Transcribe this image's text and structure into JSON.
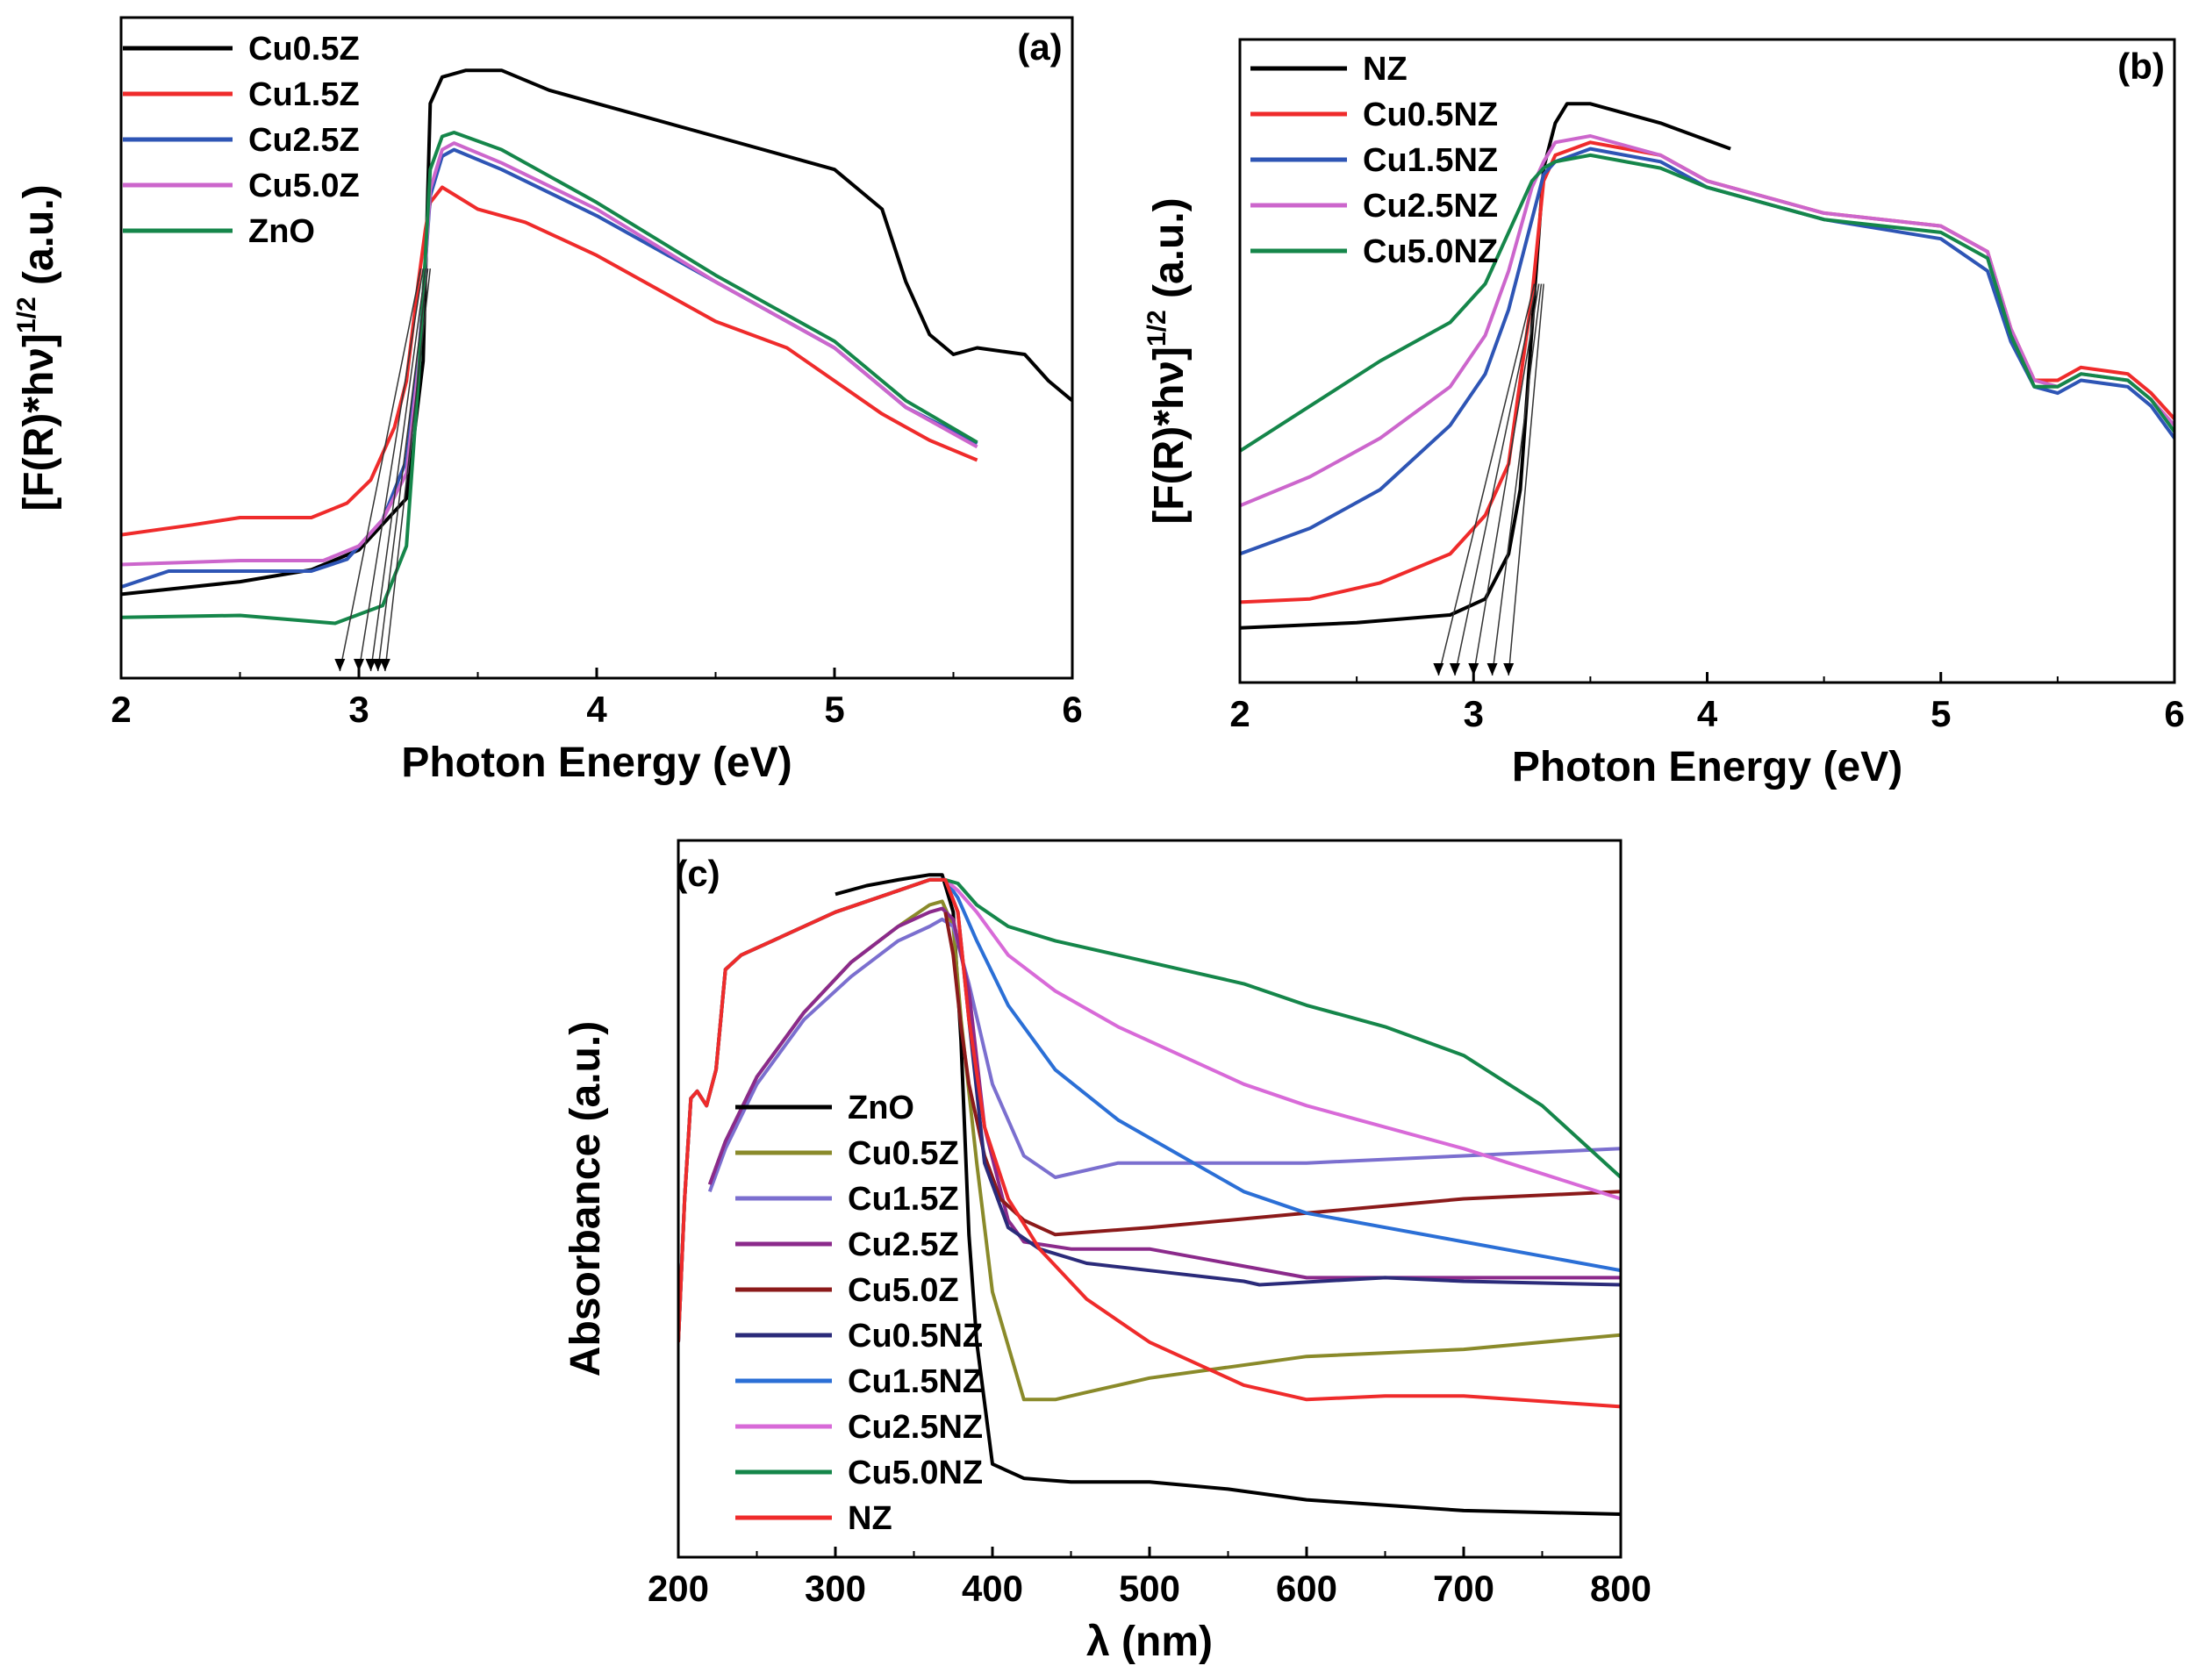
{
  "figure": "UV-Vis diffuse reflectance: Tauc plots and absorbance spectra",
  "chart_data": [
    {
      "id": "a",
      "type": "line",
      "panel_label": "(a)",
      "title": "",
      "xlabel": "Photon Energy (eV)",
      "ylabel_main": "[F(R)*hν]",
      "ylabel_sup": "1/2",
      "ylabel_unit": "(a.u.)",
      "xlim": [
        2,
        6
      ],
      "ylim": [
        0,
        1
      ],
      "xticks": [
        2,
        3,
        4,
        5,
        6
      ],
      "show_yticks": false,
      "legend_position": "top-left",
      "series": [
        {
          "name": "Cu0.5Z",
          "color": "#000000",
          "x": [
            2,
            2.5,
            2.8,
            3.0,
            3.2,
            3.27,
            3.3,
            3.35,
            3.45,
            3.6,
            3.8,
            4.0,
            4.5,
            5.0,
            5.2,
            5.3,
            5.4,
            5.5,
            5.6,
            5.8,
            5.9,
            6.0
          ],
          "y": [
            0.127,
            0.146,
            0.164,
            0.194,
            0.272,
            0.48,
            0.87,
            0.91,
            0.92,
            0.92,
            0.89,
            0.87,
            0.82,
            0.77,
            0.71,
            0.6,
            0.52,
            0.49,
            0.5,
            0.49,
            0.45,
            0.42
          ]
        },
        {
          "name": "Cu1.5Z",
          "color": "#ef2b2b",
          "x": [
            2,
            2.3,
            2.5,
            2.8,
            2.95,
            3.05,
            3.15,
            3.2,
            3.25,
            3.28,
            3.3,
            3.35,
            3.5,
            3.7,
            4.0,
            4.5,
            4.8,
            5.0,
            5.2,
            5.4,
            5.6
          ],
          "y": [
            0.217,
            0.232,
            0.243,
            0.243,
            0.265,
            0.3,
            0.38,
            0.45,
            0.6,
            0.68,
            0.72,
            0.743,
            0.71,
            0.69,
            0.64,
            0.54,
            0.5,
            0.45,
            0.4,
            0.36,
            0.33
          ]
        },
        {
          "name": "Cu2.5Z",
          "color": "#2e55b5",
          "x": [
            2,
            2.2,
            2.5,
            2.8,
            2.95,
            3.1,
            3.2,
            3.25,
            3.3,
            3.35,
            3.4,
            3.6,
            4.0,
            4.5,
            5.0,
            5.3,
            5.6
          ],
          "y": [
            0.138,
            0.162,
            0.162,
            0.162,
            0.18,
            0.24,
            0.33,
            0.48,
            0.73,
            0.79,
            0.8,
            0.77,
            0.7,
            0.6,
            0.5,
            0.41,
            0.355
          ]
        },
        {
          "name": "Cu5.0Z",
          "color": "#cc66cc",
          "x": [
            2,
            2.5,
            2.85,
            3.0,
            3.1,
            3.2,
            3.25,
            3.3,
            3.35,
            3.4,
            3.6,
            4.0,
            4.5,
            5.0,
            5.3,
            5.6
          ],
          "y": [
            0.172,
            0.178,
            0.178,
            0.2,
            0.24,
            0.31,
            0.47,
            0.74,
            0.8,
            0.81,
            0.78,
            0.71,
            0.6,
            0.5,
            0.41,
            0.35
          ]
        },
        {
          "name": "ZnO",
          "color": "#15864a",
          "x": [
            2,
            2.5,
            2.9,
            3.1,
            3.2,
            3.25,
            3.3,
            3.35,
            3.4,
            3.6,
            4.0,
            4.5,
            5.0,
            5.3,
            5.6
          ],
          "y": [
            0.092,
            0.095,
            0.083,
            0.11,
            0.2,
            0.45,
            0.77,
            0.82,
            0.826,
            0.8,
            0.72,
            0.61,
            0.51,
            0.42,
            0.357
          ]
        }
      ],
      "tangent_intercepts_eV": [
        2.92,
        3.0,
        3.05,
        3.08,
        3.11
      ]
    },
    {
      "id": "b",
      "type": "line",
      "panel_label": "(b)",
      "title": "",
      "xlabel": "Photon Energy (eV)",
      "ylabel_main": "[F(R)*hν]",
      "ylabel_sup": "1/2",
      "ylabel_unit": "(a.u.)",
      "xlim": [
        2,
        6
      ],
      "ylim": [
        0,
        1
      ],
      "xticks": [
        2,
        3,
        4,
        5,
        6
      ],
      "show_yticks": false,
      "legend_position": "top-left",
      "series": [
        {
          "name": "NZ",
          "color": "#000000",
          "x": [
            2,
            2.5,
            2.9,
            3.05,
            3.15,
            3.2,
            3.25,
            3.3,
            3.35,
            3.4,
            3.5,
            3.8,
            4.1
          ],
          "y": [
            0.085,
            0.093,
            0.105,
            0.13,
            0.2,
            0.3,
            0.55,
            0.8,
            0.87,
            0.9,
            0.9,
            0.87,
            0.83
          ]
        },
        {
          "name": "Cu0.5NZ",
          "color": "#ef2b2b",
          "x": [
            2,
            2.3,
            2.6,
            2.9,
            3.05,
            3.15,
            3.25,
            3.3,
            3.35,
            3.5,
            3.8,
            4.0,
            4.5,
            5.0,
            5.2,
            5.3,
            5.4,
            5.5,
            5.6,
            5.8,
            5.9,
            6.0
          ],
          "y": [
            0.125,
            0.13,
            0.155,
            0.2,
            0.26,
            0.34,
            0.6,
            0.78,
            0.82,
            0.84,
            0.82,
            0.78,
            0.73,
            0.71,
            0.67,
            0.55,
            0.47,
            0.47,
            0.49,
            0.48,
            0.45,
            0.41
          ]
        },
        {
          "name": "Cu1.5NZ",
          "color": "#2e55b5",
          "x": [
            2,
            2.3,
            2.6,
            2.9,
            3.05,
            3.15,
            3.25,
            3.3,
            3.35,
            3.5,
            3.8,
            4.0,
            4.5,
            5.0,
            5.2,
            5.3,
            5.4,
            5.5,
            5.6,
            5.8,
            5.9,
            6.0
          ],
          "y": [
            0.2,
            0.24,
            0.3,
            0.4,
            0.48,
            0.58,
            0.72,
            0.79,
            0.81,
            0.83,
            0.81,
            0.77,
            0.72,
            0.69,
            0.64,
            0.53,
            0.46,
            0.45,
            0.47,
            0.46,
            0.43,
            0.38
          ]
        },
        {
          "name": "Cu2.5NZ",
          "color": "#cc66cc",
          "x": [
            2,
            2.3,
            2.6,
            2.9,
            3.05,
            3.15,
            3.25,
            3.3,
            3.35,
            3.5,
            3.8,
            4.0,
            4.5,
            5.0,
            5.2,
            5.3,
            5.4,
            5.5,
            5.6,
            5.8,
            5.9,
            6.0
          ],
          "y": [
            0.275,
            0.32,
            0.38,
            0.46,
            0.54,
            0.64,
            0.77,
            0.81,
            0.84,
            0.85,
            0.82,
            0.78,
            0.73,
            0.71,
            0.67,
            0.55,
            0.47,
            0.46,
            0.48,
            0.47,
            0.44,
            0.4
          ]
        },
        {
          "name": "Cu5.0NZ",
          "color": "#15864a",
          "x": [
            2,
            2.3,
            2.6,
            2.9,
            3.05,
            3.15,
            3.25,
            3.3,
            3.35,
            3.5,
            3.8,
            4.0,
            4.5,
            5.0,
            5.2,
            5.3,
            5.4,
            5.5,
            5.6,
            5.8,
            5.9,
            6.0
          ],
          "y": [
            0.36,
            0.43,
            0.5,
            0.56,
            0.62,
            0.7,
            0.78,
            0.8,
            0.81,
            0.82,
            0.8,
            0.77,
            0.72,
            0.7,
            0.66,
            0.54,
            0.46,
            0.46,
            0.48,
            0.47,
            0.44,
            0.39
          ]
        }
      ],
      "tangent_intercepts_eV": [
        2.85,
        2.92,
        3.0,
        3.08,
        3.15
      ]
    },
    {
      "id": "c",
      "type": "line",
      "panel_label": "(c)",
      "title": "",
      "xlabel": "λ (nm)",
      "ylabel_main": "Absorbance (a.u.)",
      "ylabel_sup": "",
      "ylabel_unit": "",
      "xlim": [
        200,
        800
      ],
      "ylim": [
        0,
        1
      ],
      "xticks": [
        200,
        300,
        400,
        500,
        600,
        700,
        800
      ],
      "show_yticks": false,
      "legend_position": "center-left",
      "series": [
        {
          "name": "ZnO",
          "color": "#000000",
          "x": [
            300,
            320,
            340,
            360,
            368,
            375,
            380,
            385,
            390,
            400,
            420,
            450,
            500,
            550,
            600,
            700,
            800
          ],
          "y": [
            0.925,
            0.937,
            0.945,
            0.952,
            0.952,
            0.9,
            0.72,
            0.45,
            0.3,
            0.13,
            0.11,
            0.105,
            0.105,
            0.095,
            0.08,
            0.065,
            0.06
          ]
        },
        {
          "name": "Cu0.5Z",
          "color": "#8a8a2a",
          "x": [
            220,
            230,
            250,
            280,
            310,
            340,
            360,
            368,
            375,
            380,
            390,
            400,
            420,
            440,
            460,
            500,
            600,
            700,
            800
          ],
          "y": [
            0.52,
            0.58,
            0.67,
            0.76,
            0.83,
            0.88,
            0.91,
            0.915,
            0.88,
            0.75,
            0.55,
            0.37,
            0.22,
            0.22,
            0.23,
            0.25,
            0.28,
            0.29,
            0.31
          ]
        },
        {
          "name": "Cu1.5Z",
          "color": "#7b6fcf",
          "x": [
            220,
            230,
            250,
            280,
            310,
            340,
            360,
            368,
            375,
            385,
            400,
            420,
            440,
            480,
            520,
            560,
            600,
            700,
            800
          ],
          "y": [
            0.51,
            0.57,
            0.66,
            0.75,
            0.81,
            0.86,
            0.88,
            0.89,
            0.88,
            0.8,
            0.66,
            0.56,
            0.53,
            0.55,
            0.55,
            0.55,
            0.55,
            0.56,
            0.57
          ]
        },
        {
          "name": "Cu2.5Z",
          "color": "#8b2a8b",
          "x": [
            220,
            230,
            250,
            280,
            310,
            340,
            360,
            368,
            375,
            385,
            395,
            410,
            420,
            450,
            500,
            550,
            600,
            700,
            800
          ],
          "y": [
            0.52,
            0.58,
            0.67,
            0.76,
            0.83,
            0.88,
            0.9,
            0.905,
            0.89,
            0.79,
            0.6,
            0.47,
            0.44,
            0.43,
            0.43,
            0.41,
            0.39,
            0.39,
            0.39
          ]
        },
        {
          "name": "Cu5.0Z",
          "color": "#8b1a1a",
          "x": [
            370,
            375,
            380,
            385,
            395,
            405,
            420,
            440,
            500,
            600,
            700,
            800
          ],
          "y": [
            0.9,
            0.84,
            0.74,
            0.66,
            0.56,
            0.5,
            0.47,
            0.45,
            0.46,
            0.48,
            0.5,
            0.51
          ]
        },
        {
          "name": "Cu0.5NZ",
          "color": "#2b2b7a",
          "x": [
            200,
            204,
            208,
            212,
            218,
            224,
            230,
            240,
            260,
            300,
            340,
            360,
            370,
            378,
            385,
            395,
            410,
            430,
            460,
            500,
            560,
            570,
            650,
            700,
            800
          ],
          "y": [
            0.3,
            0.5,
            0.64,
            0.65,
            0.63,
            0.68,
            0.82,
            0.84,
            0.86,
            0.9,
            0.93,
            0.945,
            0.945,
            0.9,
            0.75,
            0.55,
            0.46,
            0.43,
            0.41,
            0.4,
            0.385,
            0.38,
            0.39,
            0.385,
            0.38
          ]
        },
        {
          "name": "Cu1.5NZ",
          "color": "#2b6fd6",
          "x": [
            200,
            204,
            208,
            212,
            218,
            224,
            230,
            240,
            260,
            300,
            340,
            360,
            370,
            378,
            390,
            410,
            440,
            480,
            520,
            560,
            600,
            700,
            800
          ],
          "y": [
            0.3,
            0.5,
            0.64,
            0.65,
            0.63,
            0.68,
            0.82,
            0.84,
            0.86,
            0.9,
            0.93,
            0.945,
            0.945,
            0.92,
            0.86,
            0.77,
            0.68,
            0.61,
            0.56,
            0.51,
            0.48,
            0.44,
            0.4
          ]
        },
        {
          "name": "Cu2.5NZ",
          "color": "#d86ad8",
          "x": [
            200,
            204,
            208,
            212,
            218,
            224,
            230,
            240,
            260,
            300,
            340,
            360,
            370,
            378,
            390,
            410,
            440,
            480,
            520,
            560,
            600,
            700,
            800
          ],
          "y": [
            0.3,
            0.5,
            0.64,
            0.65,
            0.63,
            0.68,
            0.82,
            0.84,
            0.86,
            0.9,
            0.93,
            0.945,
            0.945,
            0.93,
            0.9,
            0.84,
            0.79,
            0.74,
            0.7,
            0.66,
            0.63,
            0.57,
            0.5
          ]
        },
        {
          "name": "Cu5.0NZ",
          "color": "#15864a",
          "x": [
            200,
            204,
            208,
            212,
            218,
            224,
            230,
            240,
            260,
            300,
            340,
            360,
            370,
            378,
            390,
            410,
            440,
            480,
            520,
            560,
            600,
            650,
            700,
            750,
            800
          ],
          "y": [
            0.3,
            0.5,
            0.64,
            0.65,
            0.63,
            0.68,
            0.82,
            0.84,
            0.86,
            0.9,
            0.93,
            0.945,
            0.945,
            0.94,
            0.91,
            0.88,
            0.86,
            0.84,
            0.82,
            0.8,
            0.77,
            0.74,
            0.7,
            0.63,
            0.53
          ]
        },
        {
          "name": "NZ",
          "color": "#ef2b2b",
          "x": [
            200,
            204,
            208,
            212,
            218,
            224,
            230,
            240,
            260,
            300,
            340,
            360,
            370,
            378,
            385,
            395,
            410,
            430,
            460,
            500,
            560,
            600,
            650,
            700,
            800
          ],
          "y": [
            0.3,
            0.5,
            0.64,
            0.65,
            0.63,
            0.68,
            0.82,
            0.84,
            0.86,
            0.9,
            0.93,
            0.945,
            0.945,
            0.9,
            0.75,
            0.6,
            0.5,
            0.43,
            0.36,
            0.3,
            0.24,
            0.22,
            0.225,
            0.225,
            0.21
          ]
        }
      ]
    }
  ]
}
